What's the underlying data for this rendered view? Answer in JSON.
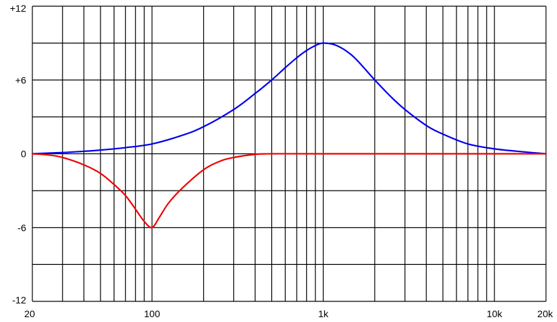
{
  "chart_data": {
    "type": "line",
    "title": "",
    "xlabel": "",
    "ylabel": "",
    "x_scale": "log",
    "xlim": [
      20,
      20000
    ],
    "ylim": [
      -12,
      12
    ],
    "grid": true,
    "x_tick_labels": [
      {
        "value": 20,
        "label": "20"
      },
      {
        "value": 100,
        "label": "100"
      },
      {
        "value": 1000,
        "label": "1k"
      },
      {
        "value": 10000,
        "label": "10k"
      },
      {
        "value": 20000,
        "label": "20k"
      }
    ],
    "y_tick_labels": [
      {
        "value": 12,
        "label": "+12"
      },
      {
        "value": 6,
        "label": "+6"
      },
      {
        "value": 0,
        "label": "0"
      },
      {
        "value": -6,
        "label": "-6"
      },
      {
        "value": -12,
        "label": "-12"
      }
    ],
    "x_gridlines": [
      20,
      30,
      40,
      50,
      60,
      70,
      80,
      90,
      100,
      200,
      300,
      400,
      500,
      600,
      700,
      800,
      900,
      1000,
      2000,
      3000,
      4000,
      5000,
      6000,
      7000,
      8000,
      9000,
      10000,
      20000
    ],
    "y_gridlines": [
      -12,
      -9,
      -6,
      -3,
      0,
      3,
      6,
      9,
      12
    ],
    "series": [
      {
        "color": "#0000ee",
        "x": [
          20,
          30,
          40,
          50,
          70,
          100,
          150,
          200,
          300,
          400,
          500,
          600,
          700,
          800,
          900,
          1000,
          1200,
          1500,
          2000,
          2500,
          3000,
          4000,
          5000,
          7000,
          10000,
          15000,
          20000
        ],
        "y": [
          0.0,
          0.1,
          0.2,
          0.3,
          0.5,
          0.8,
          1.5,
          2.2,
          3.6,
          4.9,
          6.0,
          7.0,
          7.8,
          8.4,
          8.8,
          9.0,
          8.8,
          7.9,
          6.0,
          4.6,
          3.6,
          2.3,
          1.6,
          0.8,
          0.4,
          0.15,
          0.0
        ]
      },
      {
        "color": "#ee0000",
        "x": [
          20,
          25,
          30,
          40,
          50,
          60,
          70,
          80,
          90,
          100,
          110,
          125,
          150,
          200,
          250,
          300,
          400,
          500,
          1000,
          20000
        ],
        "y": [
          0.0,
          -0.1,
          -0.3,
          -0.9,
          -1.6,
          -2.5,
          -3.4,
          -4.5,
          -5.5,
          -6.0,
          -5.2,
          -4.0,
          -2.8,
          -1.3,
          -0.6,
          -0.3,
          -0.05,
          0.0,
          0.0,
          0.0
        ]
      }
    ]
  }
}
